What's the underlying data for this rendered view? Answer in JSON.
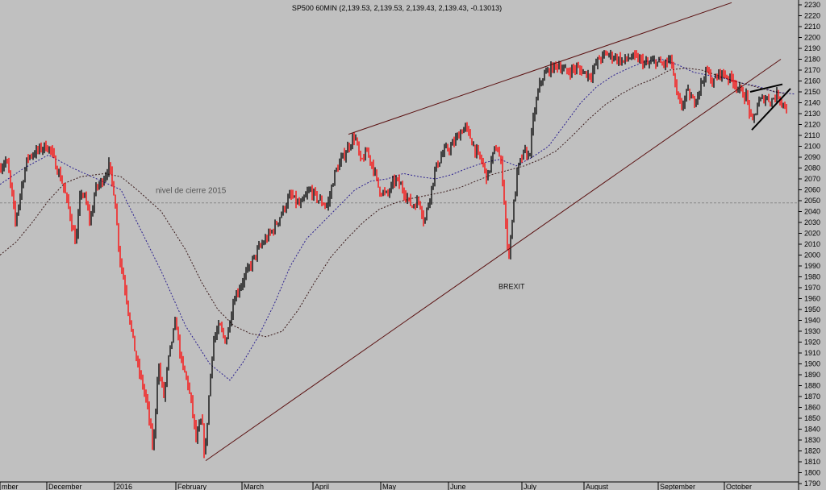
{
  "chart_data": {
    "type": "candlestick",
    "title": "SP500 60MIN (2,139.53, 2,139.53, 2,139.43, 2,139.43, -0.13013)",
    "xlabel": "",
    "ylabel": "",
    "ylim": [
      1780,
      2230
    ],
    "ytick_step": 10,
    "grid": false,
    "x_tick_labels": [
      "mber",
      "December",
      "2016",
      "February",
      "March",
      "April",
      "May",
      "June",
      "July",
      "August",
      "September",
      "October"
    ],
    "annotations": {
      "close_level_label": "nivel de cierre 2015",
      "close_level_value": 2048,
      "brexit_label": "BREXIT",
      "brexit_value": 1992
    },
    "colors": {
      "background": "#c0c0c0",
      "bull": "#000000",
      "bear": "#ff0000",
      "fast_ma": "#2a1f8f",
      "slow_ma": "#3a1a1a",
      "trendline": "#5a1010",
      "triangle": "#000000"
    },
    "series": [
      {
        "name": "price",
        "waypoints": [
          [
            0,
            2080
          ],
          [
            8,
            2088
          ],
          [
            14,
            2060
          ],
          [
            19,
            2030
          ],
          [
            26,
            2060
          ],
          [
            34,
            2090
          ],
          [
            45,
            2095
          ],
          [
            55,
            2100
          ],
          [
            62,
            2098
          ],
          [
            68,
            2085
          ],
          [
            78,
            2065
          ],
          [
            86,
            2040
          ],
          [
            94,
            2010
          ],
          [
            100,
            2060
          ],
          [
            106,
            2050
          ],
          [
            112,
            2030
          ],
          [
            118,
            2060
          ],
          [
            128,
            2070
          ],
          [
            135,
            2082
          ],
          [
            142,
            2055
          ],
          [
            148,
            2000
          ],
          [
            155,
            1970
          ],
          [
            162,
            1935
          ],
          [
            170,
            1900
          ],
          [
            177,
            1880
          ],
          [
            183,
            1860
          ],
          [
            190,
            1820
          ],
          [
            196,
            1900
          ],
          [
            203,
            1870
          ],
          [
            210,
            1910
          ],
          [
            218,
            1940
          ],
          [
            225,
            1900
          ],
          [
            232,
            1885
          ],
          [
            238,
            1860
          ],
          [
            243,
            1830
          ],
          [
            250,
            1850
          ],
          [
            254,
            1812
          ],
          [
            258,
            1860
          ],
          [
            264,
            1920
          ],
          [
            272,
            1935
          ],
          [
            280,
            1920
          ],
          [
            290,
            1960
          ],
          [
            300,
            1975
          ],
          [
            310,
            1990
          ],
          [
            320,
            2005
          ],
          [
            330,
            2015
          ],
          [
            340,
            2025
          ],
          [
            350,
            2040
          ],
          [
            360,
            2055
          ],
          [
            372,
            2045
          ],
          [
            384,
            2060
          ],
          [
            396,
            2050
          ],
          [
            406,
            2045
          ],
          [
            415,
            2075
          ],
          [
            425,
            2090
          ],
          [
            432,
            2100
          ],
          [
            440,
            2110
          ],
          [
            447,
            2085
          ],
          [
            455,
            2095
          ],
          [
            463,
            2080
          ],
          [
            470,
            2060
          ],
          [
            480,
            2055
          ],
          [
            490,
            2070
          ],
          [
            500,
            2060
          ],
          [
            510,
            2045
          ],
          [
            520,
            2050
          ],
          [
            526,
            2030
          ],
          [
            533,
            2055
          ],
          [
            540,
            2080
          ],
          [
            550,
            2095
          ],
          [
            560,
            2100
          ],
          [
            568,
            2110
          ],
          [
            576,
            2118
          ],
          [
            582,
            2110
          ],
          [
            590,
            2095
          ],
          [
            598,
            2085
          ],
          [
            604,
            2070
          ],
          [
            610,
            2090
          ],
          [
            616,
            2100
          ],
          [
            622,
            2080
          ],
          [
            626,
            2040
          ],
          [
            630,
            1995
          ],
          [
            636,
            2040
          ],
          [
            642,
            2080
          ],
          [
            650,
            2095
          ],
          [
            656,
            2090
          ],
          [
            662,
            2130
          ],
          [
            670,
            2160
          ],
          [
            680,
            2170
          ],
          [
            692,
            2175
          ],
          [
            702,
            2168
          ],
          [
            714,
            2172
          ],
          [
            724,
            2168
          ],
          [
            732,
            2165
          ],
          [
            742,
            2180
          ],
          [
            752,
            2185
          ],
          [
            762,
            2182
          ],
          [
            772,
            2178
          ],
          [
            782,
            2182
          ],
          [
            792,
            2180
          ],
          [
            802,
            2175
          ],
          [
            812,
            2178
          ],
          [
            822,
            2175
          ],
          [
            832,
            2180
          ],
          [
            838,
            2150
          ],
          [
            844,
            2135
          ],
          [
            852,
            2150
          ],
          [
            860,
            2140
          ],
          [
            868,
            2155
          ],
          [
            876,
            2170
          ],
          [
            884,
            2158
          ],
          [
            892,
            2168
          ],
          [
            900,
            2165
          ],
          [
            910,
            2160
          ],
          [
            918,
            2150
          ],
          [
            926,
            2145
          ],
          [
            932,
            2120
          ],
          [
            940,
            2140
          ],
          [
            948,
            2145
          ],
          [
            956,
            2142
          ],
          [
            964,
            2148
          ],
          [
            970,
            2140
          ],
          [
            976,
            2135
          ]
        ]
      },
      {
        "name": "fast_ma",
        "waypoints": [
          [
            0,
            2065
          ],
          [
            30,
            2080
          ],
          [
            60,
            2092
          ],
          [
            90,
            2080
          ],
          [
            120,
            2070
          ],
          [
            150,
            2060
          ],
          [
            170,
            2030
          ],
          [
            200,
            1985
          ],
          [
            230,
            1935
          ],
          [
            260,
            1900
          ],
          [
            285,
            1885
          ],
          [
            300,
            1900
          ],
          [
            320,
            1925
          ],
          [
            340,
            1955
          ],
          [
            360,
            1990
          ],
          [
            380,
            2015
          ],
          [
            400,
            2030
          ],
          [
            420,
            2045
          ],
          [
            440,
            2060
          ],
          [
            460,
            2068
          ],
          [
            480,
            2070
          ],
          [
            500,
            2075
          ],
          [
            520,
            2072
          ],
          [
            540,
            2070
          ],
          [
            560,
            2074
          ],
          [
            580,
            2080
          ],
          [
            600,
            2085
          ],
          [
            620,
            2088
          ],
          [
            640,
            2082
          ],
          [
            660,
            2090
          ],
          [
            680,
            2100
          ],
          [
            700,
            2120
          ],
          [
            720,
            2140
          ],
          [
            740,
            2155
          ],
          [
            760,
            2165
          ],
          [
            780,
            2172
          ],
          [
            800,
            2178
          ],
          [
            820,
            2180
          ],
          [
            840,
            2175
          ],
          [
            860,
            2168
          ],
          [
            880,
            2165
          ],
          [
            900,
            2162
          ],
          [
            920,
            2158
          ],
          [
            940,
            2155
          ],
          [
            960,
            2150
          ],
          [
            985,
            2148
          ]
        ]
      },
      {
        "name": "slow_ma",
        "waypoints": [
          [
            0,
            2000
          ],
          [
            20,
            2012
          ],
          [
            40,
            2030
          ],
          [
            60,
            2050
          ],
          [
            80,
            2066
          ],
          [
            100,
            2072
          ],
          [
            130,
            2075
          ],
          [
            150,
            2072
          ],
          [
            170,
            2060
          ],
          [
            200,
            2040
          ],
          [
            230,
            2005
          ],
          [
            250,
            1975
          ],
          [
            270,
            1950
          ],
          [
            290,
            1935
          ],
          [
            310,
            1928
          ],
          [
            330,
            1925
          ],
          [
            350,
            1930
          ],
          [
            370,
            1950
          ],
          [
            390,
            1975
          ],
          [
            410,
            1998
          ],
          [
            430,
            2015
          ],
          [
            450,
            2030
          ],
          [
            470,
            2042
          ],
          [
            490,
            2048
          ],
          [
            510,
            2052
          ],
          [
            530,
            2055
          ],
          [
            550,
            2058
          ],
          [
            570,
            2062
          ],
          [
            590,
            2068
          ],
          [
            610,
            2074
          ],
          [
            630,
            2078
          ],
          [
            650,
            2082
          ],
          [
            670,
            2088
          ],
          [
            690,
            2096
          ],
          [
            710,
            2110
          ],
          [
            730,
            2125
          ],
          [
            750,
            2138
          ],
          [
            770,
            2148
          ],
          [
            790,
            2156
          ],
          [
            810,
            2162
          ],
          [
            830,
            2170
          ],
          [
            850,
            2172
          ],
          [
            870,
            2170
          ],
          [
            890,
            2165
          ],
          [
            910,
            2160
          ],
          [
            930,
            2156
          ],
          [
            950,
            2152
          ],
          [
            975,
            2148
          ]
        ]
      }
    ],
    "trendlines": [
      {
        "name": "upper_channel",
        "from": [
          432,
          2111
        ],
        "to": [
          907,
          2232
        ]
      },
      {
        "name": "lower_channel",
        "from": [
          255,
          1811
        ],
        "to": [
          968,
          2180
        ]
      }
    ],
    "triangle": {
      "upper": {
        "from": [
          930,
          2150
        ],
        "to": [
          970,
          2157
        ]
      },
      "lower": {
        "from": [
          932,
          2115
        ],
        "to": [
          980,
          2153
        ]
      }
    }
  }
}
